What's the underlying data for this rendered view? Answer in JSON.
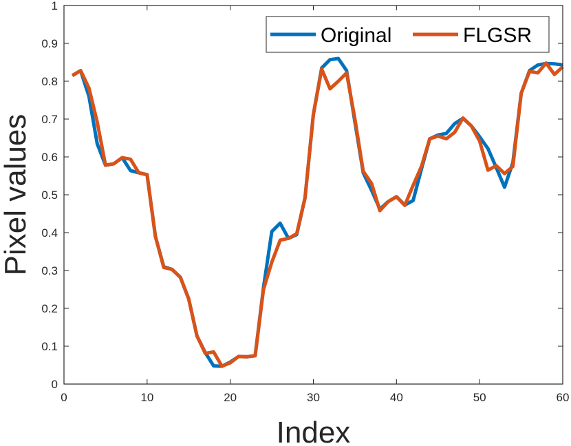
{
  "chart_data": {
    "type": "line",
    "title": "",
    "xlabel": "Index",
    "ylabel": "Pixel values",
    "xlim": [
      0,
      60
    ],
    "ylim": [
      0,
      1
    ],
    "xticks": [
      0,
      10,
      20,
      30,
      40,
      50,
      60
    ],
    "yticks": [
      0,
      0.1,
      0.2,
      0.3,
      0.4,
      0.5,
      0.6,
      0.7,
      0.8,
      0.9,
      1
    ],
    "xtick_labels": [
      "0",
      "10",
      "20",
      "30",
      "40",
      "50",
      "60"
    ],
    "ytick_labels": [
      "0",
      "0.1",
      "0.2",
      "0.3",
      "0.4",
      "0.5",
      "0.6",
      "0.7",
      "0.8",
      "0.9",
      "1"
    ],
    "grid": false,
    "legend_position": "top-right",
    "x": [
      1,
      2,
      3,
      4,
      5,
      6,
      7,
      8,
      9,
      10,
      11,
      12,
      13,
      14,
      15,
      16,
      17,
      18,
      19,
      20,
      21,
      22,
      23,
      24,
      25,
      26,
      27,
      28,
      29,
      30,
      31,
      32,
      33,
      34,
      35,
      36,
      37,
      38,
      39,
      40,
      41,
      42,
      43,
      44,
      45,
      46,
      47,
      48,
      49,
      50,
      51,
      52,
      53,
      54,
      55,
      56,
      57,
      58,
      59,
      60
    ],
    "series": [
      {
        "name": "Original",
        "color": "#0072BD",
        "values": [
          0.815,
          0.828,
          0.76,
          0.635,
          0.578,
          0.582,
          0.598,
          0.564,
          0.558,
          0.553,
          0.39,
          0.31,
          0.303,
          0.282,
          0.225,
          0.127,
          0.083,
          0.048,
          0.047,
          0.058,
          0.073,
          0.072,
          0.075,
          0.255,
          0.403,
          0.425,
          0.385,
          0.395,
          0.492,
          0.712,
          0.835,
          0.857,
          0.86,
          0.828,
          0.692,
          0.558,
          0.512,
          0.462,
          0.482,
          0.495,
          0.473,
          0.485,
          0.568,
          0.648,
          0.658,
          0.662,
          0.688,
          0.702,
          0.682,
          0.653,
          0.622,
          0.572,
          0.52,
          0.585,
          0.768,
          0.828,
          0.843,
          0.847,
          0.846,
          0.843
        ]
      },
      {
        "name": "FLGSR",
        "color": "#D95319",
        "values": [
          0.815,
          0.828,
          0.782,
          0.692,
          0.578,
          0.582,
          0.598,
          0.594,
          0.558,
          0.553,
          0.39,
          0.308,
          0.303,
          0.282,
          0.225,
          0.127,
          0.081,
          0.085,
          0.047,
          0.056,
          0.073,
          0.072,
          0.075,
          0.25,
          0.322,
          0.38,
          0.385,
          0.397,
          0.492,
          0.712,
          0.832,
          0.78,
          0.8,
          0.822,
          0.7,
          0.562,
          0.53,
          0.458,
          0.482,
          0.495,
          0.472,
          0.525,
          0.575,
          0.648,
          0.655,
          0.648,
          0.665,
          0.703,
          0.682,
          0.642,
          0.565,
          0.577,
          0.556,
          0.575,
          0.768,
          0.826,
          0.822,
          0.848,
          0.818,
          0.838
        ]
      }
    ]
  }
}
